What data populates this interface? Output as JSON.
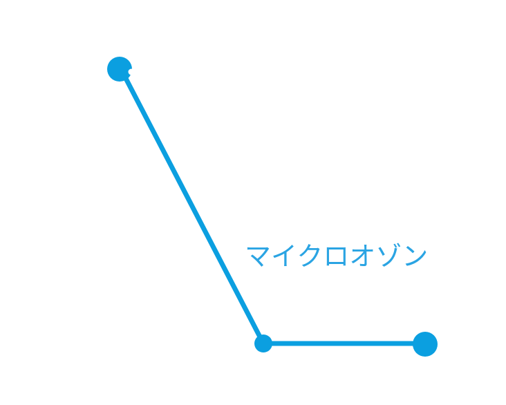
{
  "diagram": {
    "label": "マイクロオゾン",
    "colors": {
      "line": "#0b9fe0",
      "label": "#2aa4e3",
      "background": "#ffffff"
    },
    "nodes": [
      {
        "id": "start-node",
        "shape": "circle-with-notch"
      },
      {
        "id": "corner-node",
        "shape": "small-circle"
      },
      {
        "id": "end-node",
        "shape": "circle"
      }
    ],
    "segments": [
      {
        "from": "start-node",
        "to": "corner-node"
      },
      {
        "from": "corner-node",
        "to": "end-node"
      }
    ]
  }
}
